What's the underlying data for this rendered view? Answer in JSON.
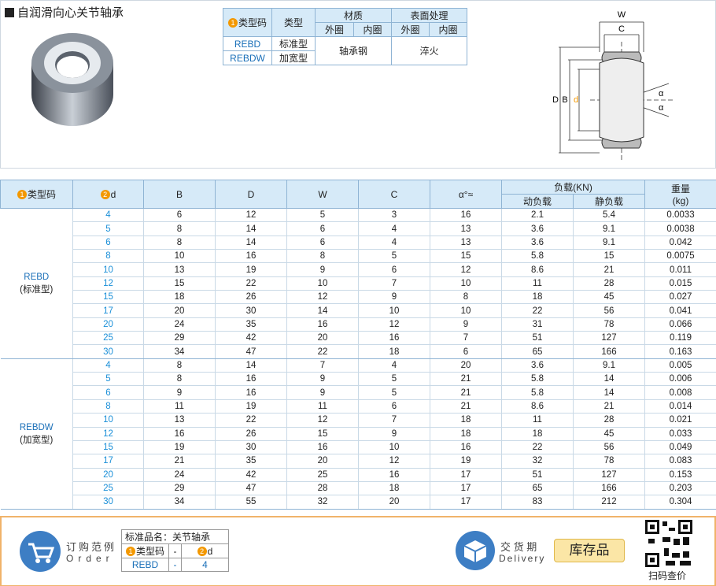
{
  "header": {
    "title": "自润滑向心关节轴承"
  },
  "spec_table": {
    "type_code": "❶类型码",
    "type": "类型",
    "material": "材质",
    "material_outer": "外圈",
    "material_inner": "内圈",
    "surface": "表面处理",
    "surface_outer": "外圈",
    "surface_inner": "内圈",
    "rows": [
      [
        "REBD",
        "标准型"
      ],
      [
        "REBDW",
        "加宽型"
      ]
    ],
    "material_value": "轴承钢",
    "surface_value": "淬火"
  },
  "diagram": {
    "W": "W",
    "C": "C",
    "D": "D",
    "B": "B",
    "d": "❷d",
    "alpha_labels": [
      "α",
      "α"
    ]
  },
  "table": {
    "headers": [
      "❶类型码",
      "❷d",
      "B",
      "D",
      "W",
      "C",
      "α°≈"
    ],
    "load": "负载(KN)",
    "load_dynamic": "动负载",
    "load_static": "静负载",
    "weight": "重量",
    "weight_unit": "(kg)",
    "groups": [
      {
        "code": "REBD",
        "type": "(标准型)",
        "rows": [
          [
            4,
            6,
            12,
            5,
            3,
            16,
            2.1,
            5.4,
            0.0033
          ],
          [
            5,
            8,
            14,
            6,
            4,
            13,
            3.6,
            9.1,
            0.0038
          ],
          [
            6,
            8,
            14,
            6,
            4,
            13,
            3.6,
            9.1,
            0.042
          ],
          [
            8,
            10,
            16,
            8,
            5,
            15,
            5.8,
            15,
            0.0075
          ],
          [
            10,
            13,
            19,
            9,
            6,
            12,
            8.6,
            21,
            0.011
          ],
          [
            12,
            15,
            22,
            10,
            7,
            10,
            11,
            28,
            0.015
          ],
          [
            15,
            18,
            26,
            12,
            9,
            8,
            18,
            45,
            0.027
          ],
          [
            17,
            20,
            30,
            14,
            10,
            10,
            22,
            56,
            0.041
          ],
          [
            20,
            24,
            35,
            16,
            12,
            9,
            31,
            78,
            0.066
          ],
          [
            25,
            29,
            42,
            20,
            16,
            7,
            51,
            127,
            0.119
          ],
          [
            30,
            34,
            47,
            22,
            18,
            6,
            65,
            166,
            0.163
          ]
        ]
      },
      {
        "code": "REBDW",
        "type": "(加宽型)",
        "rows": [
          [
            4,
            8,
            14,
            7,
            4,
            20,
            3.6,
            9.1,
            0.005
          ],
          [
            5,
            8,
            16,
            9,
            5,
            21,
            5.8,
            14,
            0.006
          ],
          [
            6,
            9,
            16,
            9,
            5,
            21,
            5.8,
            14,
            0.008
          ],
          [
            8,
            11,
            19,
            11,
            6,
            21,
            8.6,
            21,
            0.014
          ],
          [
            10,
            13,
            22,
            12,
            7,
            18,
            11,
            28,
            0.021
          ],
          [
            12,
            16,
            26,
            15,
            9,
            18,
            18,
            45,
            0.033
          ],
          [
            15,
            19,
            30,
            16,
            10,
            16,
            22,
            56,
            0.049
          ],
          [
            17,
            21,
            35,
            20,
            12,
            19,
            32,
            78,
            0.083
          ],
          [
            20,
            24,
            42,
            25,
            16,
            17,
            51,
            127,
            0.153
          ],
          [
            25,
            29,
            47,
            28,
            18,
            17,
            65,
            166,
            0.203
          ],
          [
            30,
            34,
            55,
            32,
            20,
            17,
            83,
            212,
            0.304
          ]
        ]
      }
    ]
  },
  "order": {
    "title": "订购范例",
    "subtitle": "Order",
    "product_name": "标准品名：关节轴承",
    "fields": [
      "❶类型码",
      "-",
      "❷d"
    ],
    "values": [
      "REBD",
      "-",
      "4"
    ]
  },
  "delivery": {
    "title": "交 货 期",
    "subtitle": "Delivery",
    "value": "库存品",
    "qr_label": "扫码查价"
  }
}
